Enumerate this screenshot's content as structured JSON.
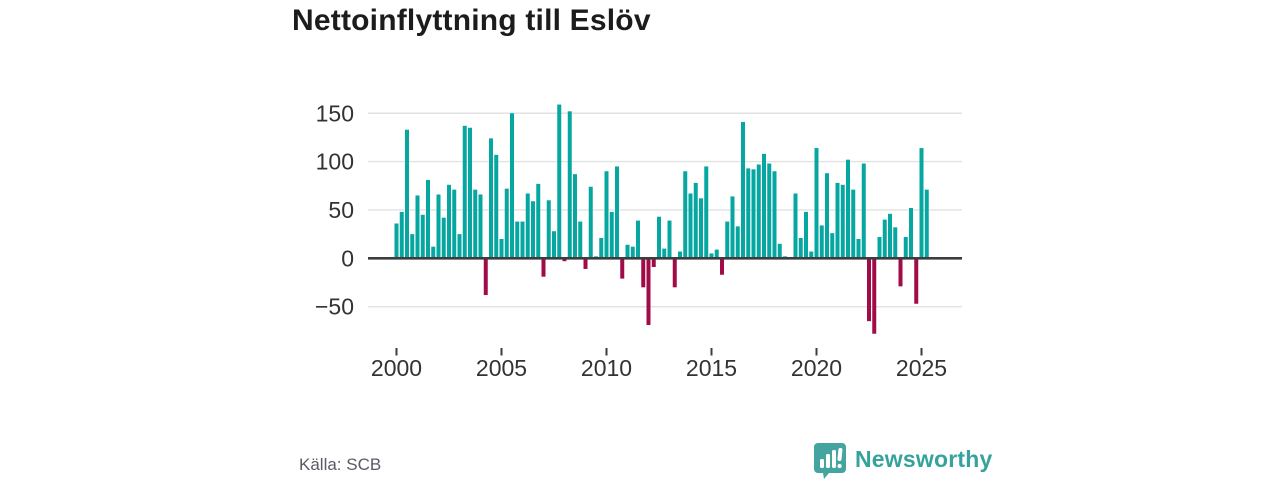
{
  "header": {
    "title": "Nettoinflyttning till Eslöv"
  },
  "chart_data": {
    "type": "bar",
    "title": "Nettoinflyttning till Eslöv",
    "frequency": "quarterly",
    "start_year": 2000,
    "start_quarter": 1,
    "values": [
      36,
      48,
      133,
      25,
      65,
      45,
      81,
      12,
      66,
      42,
      76,
      71,
      25,
      137,
      135,
      71,
      66,
      -38,
      124,
      107,
      20,
      72,
      150,
      38,
      38,
      67,
      59,
      77,
      -19,
      60,
      28,
      159,
      -3,
      152,
      87,
      38,
      -11,
      74,
      2,
      21,
      90,
      48,
      95,
      -21,
      14,
      12,
      39,
      -30,
      -69,
      -9,
      43,
      10,
      39,
      -30,
      7,
      90,
      67,
      78,
      62,
      95,
      5,
      9,
      -17,
      38,
      64,
      33,
      141,
      93,
      92,
      97,
      108,
      98,
      90,
      15,
      2,
      0,
      67,
      21,
      48,
      7,
      114,
      34,
      88,
      26,
      78,
      76,
      102,
      71,
      20,
      98,
      -65,
      -78,
      22,
      40,
      46,
      32,
      -29,
      22,
      52,
      -47,
      114,
      71
    ],
    "x_ticks": [
      2000,
      2005,
      2010,
      2015,
      2020,
      2025
    ],
    "y_ticks": [
      150,
      100,
      50,
      0,
      -50
    ],
    "ylim": [
      -85,
      168
    ],
    "grid": true,
    "legend": "none",
    "positive_color": "#06a6a1",
    "negative_color": "#a10b48",
    "gridline_color": "#e2e2e2",
    "axis_line_color": "#3d3d3d",
    "axis_text_color": "#333333"
  },
  "footer": {
    "source": "Källa: SCB",
    "logo_text": "Newsworthy",
    "logo_color": "#35a39b"
  }
}
